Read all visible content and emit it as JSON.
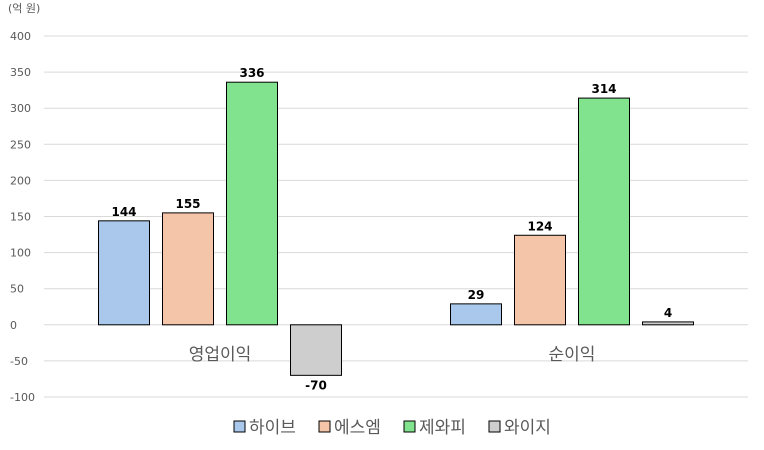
{
  "chart_data": {
    "type": "bar",
    "unit_label": "(억 원)",
    "categories": [
      "영업이익",
      "순이익"
    ],
    "series": [
      {
        "name": "하이브",
        "color": "#A9C8EB",
        "values": [
          144,
          29
        ]
      },
      {
        "name": "에스엠",
        "color": "#F5C5A9",
        "values": [
          155,
          124
        ]
      },
      {
        "name": "제와피",
        "color": "#82E38E",
        "values": [
          336,
          314
        ]
      },
      {
        "name": "와이지",
        "color": "#CECECE",
        "values": [
          -70,
          4
        ]
      }
    ],
    "ylim": [
      -100,
      400
    ],
    "yticks": [
      400,
      350,
      300,
      250,
      200,
      150,
      100,
      50,
      0,
      -50,
      -100
    ],
    "grid": true,
    "legend_position": "bottom"
  }
}
